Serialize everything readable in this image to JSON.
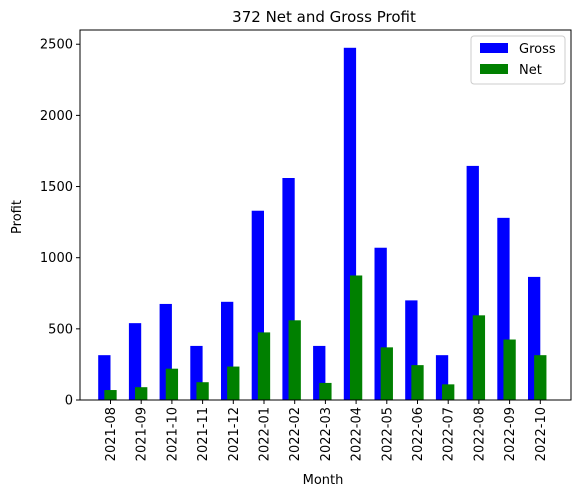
{
  "chart_data": {
    "type": "bar",
    "title": "372 Net and Gross Profit",
    "xlabel": "Month",
    "ylabel": "Profit",
    "ylim": [
      0,
      2600
    ],
    "yticks": [
      0,
      500,
      1000,
      1500,
      2000,
      2500
    ],
    "categories": [
      "2021-08",
      "2021-09",
      "2021-10",
      "2021-11",
      "2021-12",
      "2022-01",
      "2022-02",
      "2022-03",
      "2022-04",
      "2022-05",
      "2022-06",
      "2022-07",
      "2022-08",
      "2022-09",
      "2022-10"
    ],
    "series": [
      {
        "name": "Gross",
        "color": "#0000ff",
        "values": [
          315,
          540,
          675,
          380,
          690,
          1330,
          1560,
          380,
          2475,
          1070,
          700,
          315,
          1645,
          1280,
          865
        ]
      },
      {
        "name": "Net",
        "color": "#008000",
        "values": [
          70,
          90,
          220,
          125,
          235,
          475,
          560,
          120,
          875,
          370,
          245,
          110,
          595,
          425,
          315
        ]
      }
    ],
    "grid": false,
    "legend": "top-right"
  }
}
